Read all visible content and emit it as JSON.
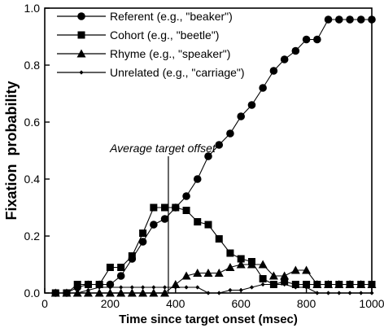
{
  "chart_data": {
    "type": "line",
    "xlabel": "Time since target onset (msec)",
    "ylabel": "Fixation  probability",
    "xlim": [
      0,
      1000
    ],
    "ylim": [
      0,
      1.0
    ],
    "xticks": [
      0,
      200,
      400,
      600,
      800,
      1000
    ],
    "yticks": [
      0.0,
      0.2,
      0.4,
      0.6,
      0.8,
      1.0
    ],
    "xtick_labels": [
      "0",
      "200",
      "400",
      "600",
      "800",
      "1000"
    ],
    "ytick_labels": [
      "0.0",
      "0.2",
      "0.4",
      "0.6",
      "0.8",
      "1.0"
    ],
    "grid": false,
    "legend_position": "top-center",
    "x": [
      33,
      67,
      100,
      133,
      167,
      200,
      233,
      267,
      300,
      333,
      367,
      400,
      433,
      467,
      500,
      533,
      567,
      600,
      633,
      667,
      700,
      733,
      767,
      800,
      833,
      867,
      900,
      933,
      967,
      1000
    ],
    "series": [
      {
        "name": "Referent (e.g., \"beaker\")",
        "marker": "circle",
        "values": [
          0.0,
          0.0,
          0.02,
          0.03,
          0.03,
          0.03,
          0.06,
          0.12,
          0.18,
          0.24,
          0.26,
          0.3,
          0.34,
          0.4,
          0.48,
          0.52,
          0.56,
          0.62,
          0.66,
          0.72,
          0.78,
          0.82,
          0.85,
          0.89,
          0.89,
          0.96,
          0.96,
          0.96,
          0.96,
          0.96
        ]
      },
      {
        "name": "Cohort (e.g., \"beetle\")",
        "marker": "square",
        "values": [
          0.0,
          0.0,
          0.03,
          0.03,
          0.03,
          0.09,
          0.09,
          0.13,
          0.21,
          0.3,
          0.3,
          0.3,
          0.29,
          0.25,
          0.24,
          0.19,
          0.14,
          0.12,
          0.11,
          0.05,
          0.03,
          0.04,
          0.03,
          0.03,
          0.03,
          0.03,
          0.03,
          0.03,
          0.03,
          0.03
        ]
      },
      {
        "name": "Rhyme (e.g., \"speaker\")",
        "marker": "triangle",
        "values": [
          0.0,
          0.0,
          0.0,
          0.0,
          0.0,
          0.0,
          0.0,
          0.0,
          0.0,
          0.0,
          0.0,
          0.03,
          0.06,
          0.07,
          0.07,
          0.07,
          0.09,
          0.1,
          0.1,
          0.1,
          0.06,
          0.06,
          0.08,
          0.08,
          0.03,
          0.03,
          0.03,
          0.03,
          0.03,
          0.03
        ]
      },
      {
        "name": "Unrelated (e.g., \"carriage\")",
        "marker": "small-diamond",
        "values": [
          0.0,
          0.0,
          0.0,
          0.01,
          0.02,
          0.02,
          0.02,
          0.02,
          0.02,
          0.02,
          0.02,
          0.02,
          0.02,
          0.02,
          0.0,
          0.0,
          0.01,
          0.01,
          0.02,
          0.03,
          0.03,
          0.03,
          0.02,
          0.02,
          0.0,
          0.0,
          0.0,
          0.0,
          0.0,
          0.0
        ]
      }
    ],
    "annotations": [
      {
        "text": "Average target offset",
        "x": 378
      }
    ]
  }
}
